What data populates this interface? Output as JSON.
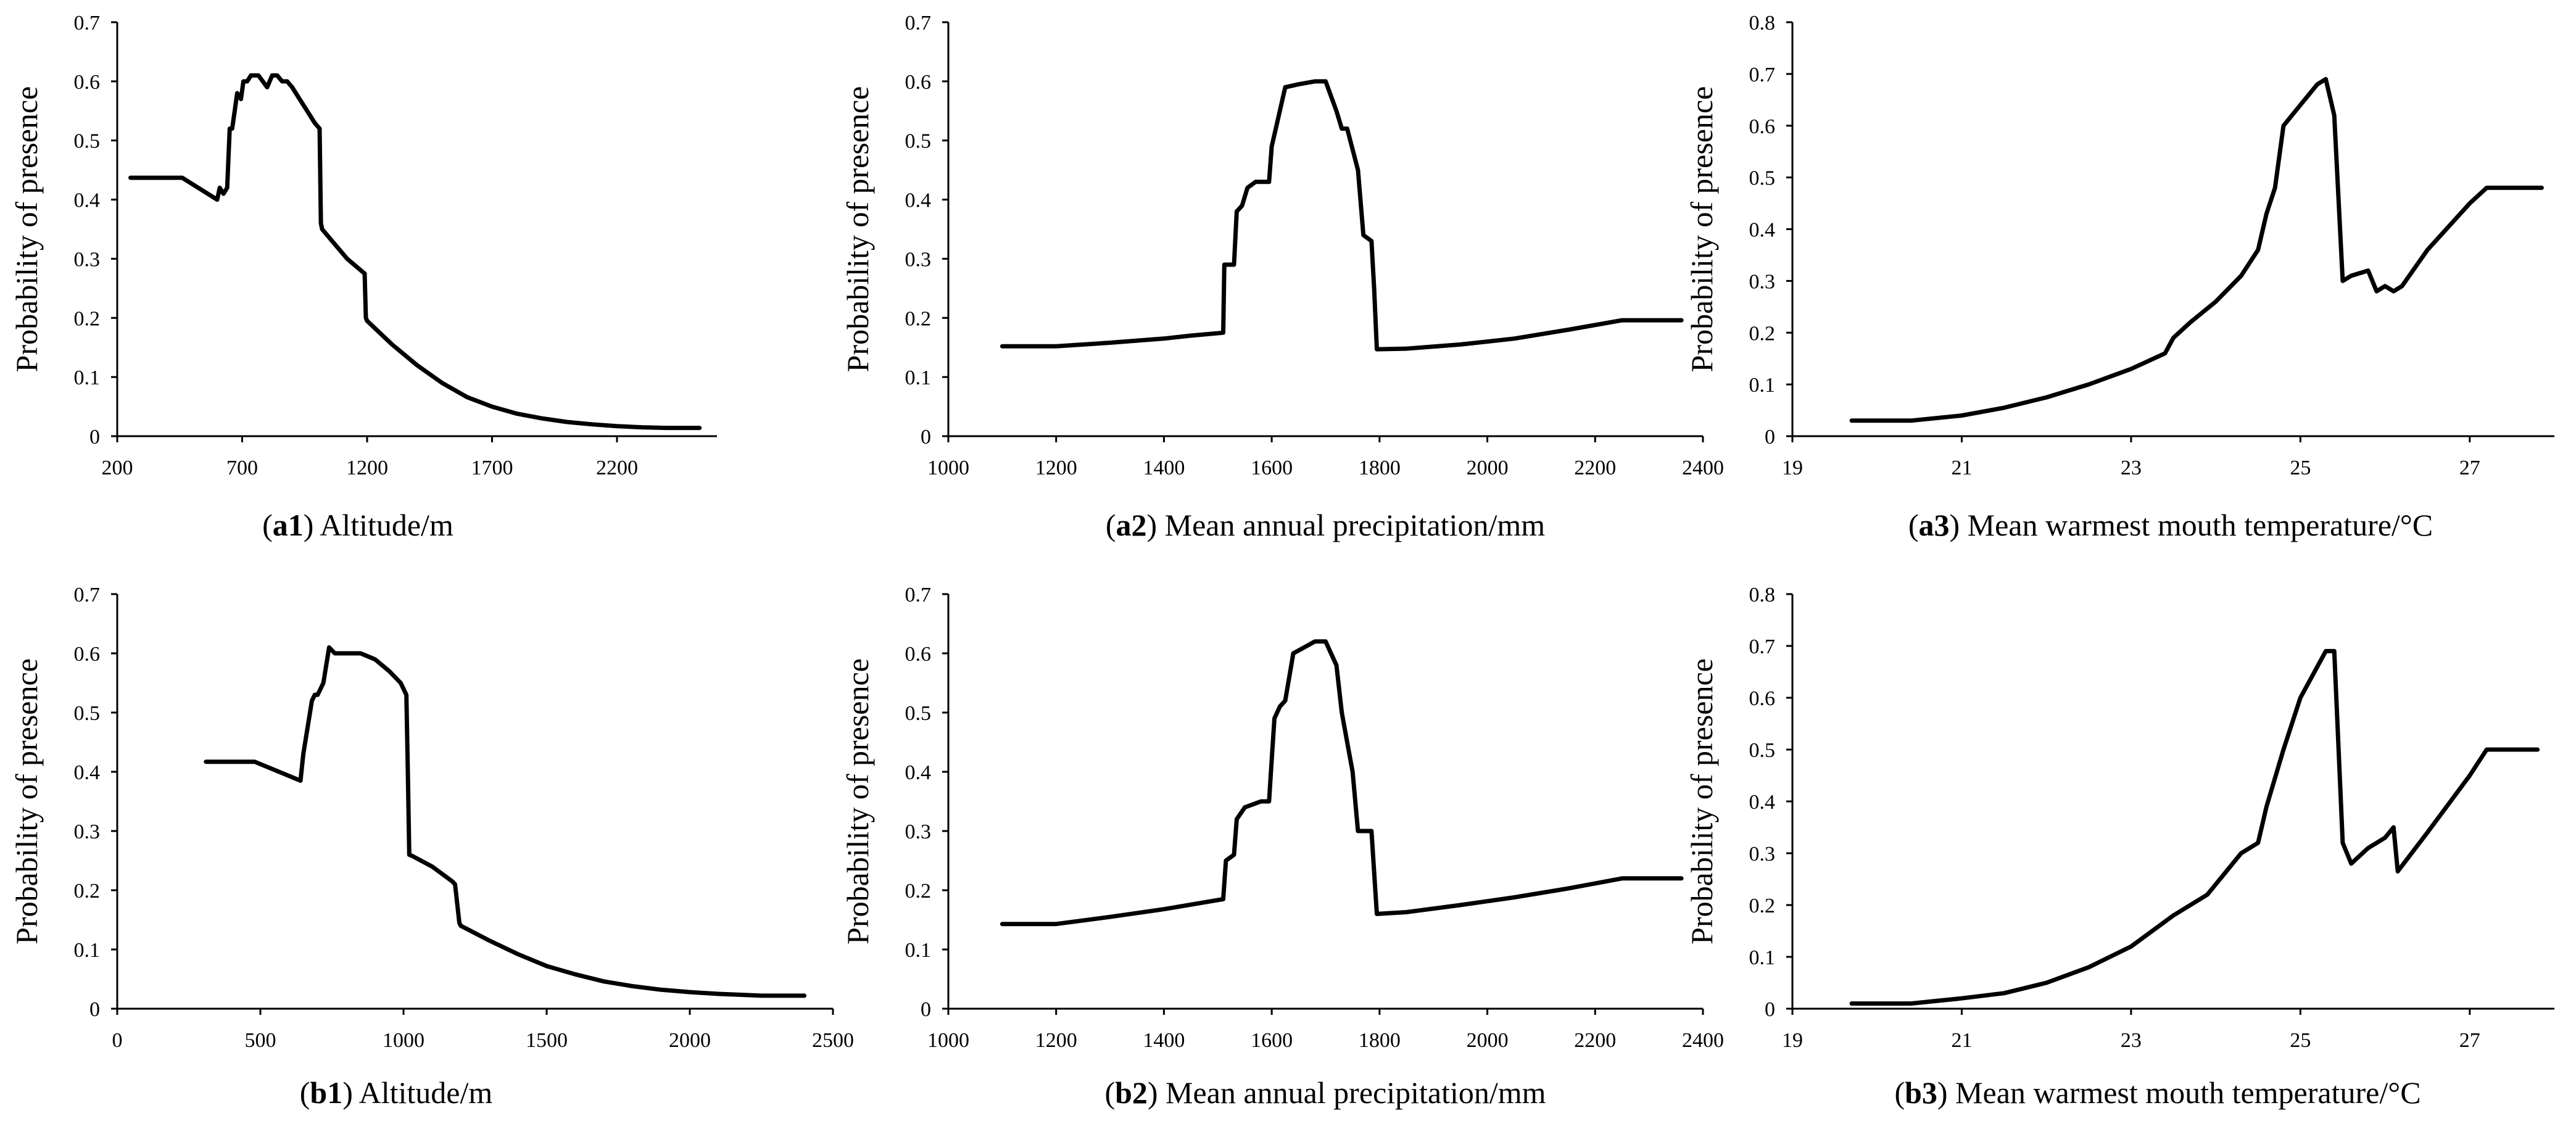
{
  "chart_data": [
    {
      "id": "a1",
      "type": "line",
      "caption_id": "a1",
      "caption_text": "Altitude/m",
      "ylabel": "Probability of presence",
      "xlim": [
        200,
        2600
      ],
      "ylim": [
        0,
        0.7
      ],
      "xticks": [
        "200",
        "700",
        "1200",
        "1700",
        "2200"
      ],
      "yticks": [
        "0",
        "0.1",
        "0.2",
        "0.3",
        "0.4",
        "0.5",
        "0.6",
        "0.7"
      ],
      "x": [
        253,
        350,
        460,
        600,
        610,
        625,
        640,
        650,
        660,
        670,
        680,
        695,
        705,
        720,
        735,
        750,
        765,
        800,
        820,
        840,
        860,
        880,
        900,
        930,
        960,
        990,
        1010,
        1015,
        1020,
        1060,
        1120,
        1190,
        1195,
        1200,
        1250,
        1300,
        1400,
        1500,
        1600,
        1700,
        1800,
        1900,
        2000,
        2100,
        2200,
        2300,
        2400,
        2530
      ],
      "y": [
        0.437,
        0.437,
        0.437,
        0.4,
        0.42,
        0.41,
        0.42,
        0.52,
        0.52,
        0.55,
        0.58,
        0.57,
        0.6,
        0.6,
        0.61,
        0.61,
        0.61,
        0.59,
        0.61,
        0.61,
        0.6,
        0.6,
        0.59,
        0.57,
        0.55,
        0.53,
        0.52,
        0.36,
        0.35,
        0.33,
        0.3,
        0.275,
        0.2,
        0.195,
        0.175,
        0.155,
        0.12,
        0.09,
        0.066,
        0.05,
        0.038,
        0.03,
        0.024,
        0.02,
        0.017,
        0.015,
        0.014,
        0.014
      ]
    },
    {
      "id": "a2",
      "type": "line",
      "caption_id": "a2",
      "caption_text": "Mean annual precipitation/mm",
      "ylabel": "Probability of presence",
      "xlim": [
        1000,
        2400
      ],
      "ylim": [
        0,
        0.7
      ],
      "xticks": [
        "1000",
        "1200",
        "1400",
        "1600",
        "1800",
        "2000",
        "2200",
        "2400"
      ],
      "yticks": [
        "0",
        "0.1",
        "0.2",
        "0.3",
        "0.4",
        "0.5",
        "0.6",
        "0.7"
      ],
      "x": [
        1100,
        1200,
        1300,
        1400,
        1450,
        1510,
        1512,
        1530,
        1535,
        1545,
        1555,
        1570,
        1595,
        1600,
        1610,
        1625,
        1650,
        1680,
        1700,
        1720,
        1730,
        1740,
        1760,
        1770,
        1785,
        1790,
        1795,
        1850,
        1950,
        2050,
        2150,
        2250,
        2360
      ],
      "y": [
        0.152,
        0.152,
        0.158,
        0.165,
        0.17,
        0.175,
        0.29,
        0.29,
        0.38,
        0.39,
        0.42,
        0.43,
        0.43,
        0.49,
        0.53,
        0.59,
        0.595,
        0.6,
        0.6,
        0.55,
        0.52,
        0.52,
        0.45,
        0.34,
        0.33,
        0.25,
        0.147,
        0.148,
        0.155,
        0.165,
        0.18,
        0.196,
        0.196
      ]
    },
    {
      "id": "a3",
      "type": "line",
      "caption_id": "a3",
      "caption_text": "Mean warmest mouth temperature/°C",
      "ylabel": "Probability of presence",
      "xlim": [
        19,
        28
      ],
      "ylim": [
        0,
        0.8
      ],
      "xticks": [
        "19",
        "21",
        "23",
        "25",
        "27"
      ],
      "yticks": [
        "0",
        "0.1",
        "0.2",
        "0.3",
        "0.4",
        "0.5",
        "0.6",
        "0.7",
        "0.8"
      ],
      "x": [
        19.7,
        20.4,
        21.0,
        21.5,
        22.0,
        22.5,
        23.0,
        23.4,
        23.5,
        23.7,
        24.0,
        24.3,
        24.5,
        24.6,
        24.7,
        24.8,
        25.0,
        25.2,
        25.3,
        25.4,
        25.5,
        25.6,
        25.8,
        25.9,
        26.0,
        26.1,
        26.2,
        26.5,
        27.0,
        27.2,
        27.85
      ],
      "y": [
        0.03,
        0.03,
        0.04,
        0.055,
        0.075,
        0.1,
        0.13,
        0.16,
        0.19,
        0.22,
        0.26,
        0.31,
        0.36,
        0.43,
        0.48,
        0.6,
        0.64,
        0.68,
        0.69,
        0.62,
        0.3,
        0.31,
        0.32,
        0.28,
        0.29,
        0.28,
        0.29,
        0.36,
        0.45,
        0.48,
        0.48
      ]
    },
    {
      "id": "b1",
      "type": "line",
      "caption_id": "b1",
      "caption_text": "Altitude/m",
      "ylabel": "Probability of presence",
      "xlim": [
        0,
        2500
      ],
      "ylim": [
        0,
        0.7
      ],
      "xticks": [
        "0",
        "500",
        "1000",
        "1500",
        "2000",
        "2500"
      ],
      "yticks": [
        "0",
        "0.1",
        "0.2",
        "0.3",
        "0.4",
        "0.5",
        "0.6",
        "0.7"
      ],
      "x": [
        310,
        480,
        640,
        650,
        660,
        670,
        680,
        690,
        700,
        720,
        740,
        760,
        800,
        850,
        900,
        950,
        990,
        1010,
        1015,
        1020,
        1030,
        1100,
        1170,
        1180,
        1195,
        1200,
        1300,
        1400,
        1500,
        1600,
        1700,
        1800,
        1900,
        2000,
        2100,
        2200,
        2250,
        2400
      ],
      "y": [
        0.417,
        0.417,
        0.385,
        0.43,
        0.46,
        0.49,
        0.52,
        0.53,
        0.53,
        0.55,
        0.61,
        0.6,
        0.6,
        0.6,
        0.59,
        0.57,
        0.55,
        0.53,
        0.4,
        0.26,
        0.258,
        0.24,
        0.215,
        0.21,
        0.145,
        0.14,
        0.115,
        0.092,
        0.072,
        0.058,
        0.046,
        0.038,
        0.032,
        0.028,
        0.025,
        0.023,
        0.022,
        0.022
      ]
    },
    {
      "id": "b2",
      "type": "line",
      "caption_id": "b2",
      "caption_text": "Mean annual precipitation/mm",
      "ylabel": "Probability of presence",
      "xlim": [
        1000,
        2400
      ],
      "ylim": [
        0,
        0.7
      ],
      "xticks": [
        "1000",
        "1200",
        "1400",
        "1600",
        "1800",
        "2000",
        "2200",
        "2400"
      ],
      "yticks": [
        "0",
        "0.1",
        "0.2",
        "0.3",
        "0.4",
        "0.5",
        "0.6",
        "0.7"
      ],
      "x": [
        1100,
        1200,
        1300,
        1400,
        1510,
        1515,
        1530,
        1535,
        1550,
        1565,
        1580,
        1595,
        1600,
        1605,
        1615,
        1625,
        1640,
        1660,
        1680,
        1700,
        1710,
        1720,
        1730,
        1740,
        1750,
        1760,
        1785,
        1795,
        1850,
        1950,
        2050,
        2150,
        2250,
        2360
      ],
      "y": [
        0.143,
        0.143,
        0.155,
        0.168,
        0.185,
        0.25,
        0.26,
        0.32,
        0.34,
        0.345,
        0.35,
        0.35,
        0.42,
        0.49,
        0.51,
        0.52,
        0.6,
        0.61,
        0.62,
        0.62,
        0.6,
        0.58,
        0.5,
        0.45,
        0.4,
        0.3,
        0.3,
        0.16,
        0.163,
        0.175,
        0.188,
        0.203,
        0.22,
        0.22
      ]
    },
    {
      "id": "b3",
      "type": "line",
      "caption_id": "b3",
      "caption_text": "Mean warmest mouth temperature/°C",
      "ylabel": "Probability of presence",
      "xlim": [
        19,
        28
      ],
      "ylim": [
        0,
        0.8
      ],
      "xticks": [
        "19",
        "21",
        "23",
        "25",
        "27"
      ],
      "yticks": [
        "0",
        "0.1",
        "0.2",
        "0.3",
        "0.4",
        "0.5",
        "0.6",
        "0.7",
        "0.8"
      ],
      "x": [
        19.7,
        20.4,
        21.0,
        21.5,
        22.0,
        22.5,
        23.0,
        23.5,
        23.9,
        24.0,
        24.3,
        24.5,
        24.6,
        24.8,
        25.0,
        25.3,
        25.4,
        25.5,
        25.6,
        25.8,
        26.0,
        26.1,
        26.15,
        26.5,
        27.0,
        27.2,
        27.8
      ],
      "y": [
        0.01,
        0.01,
        0.02,
        0.03,
        0.05,
        0.08,
        0.12,
        0.18,
        0.22,
        0.24,
        0.3,
        0.32,
        0.39,
        0.5,
        0.6,
        0.69,
        0.69,
        0.32,
        0.28,
        0.31,
        0.33,
        0.35,
        0.265,
        0.34,
        0.45,
        0.5,
        0.5
      ]
    }
  ]
}
